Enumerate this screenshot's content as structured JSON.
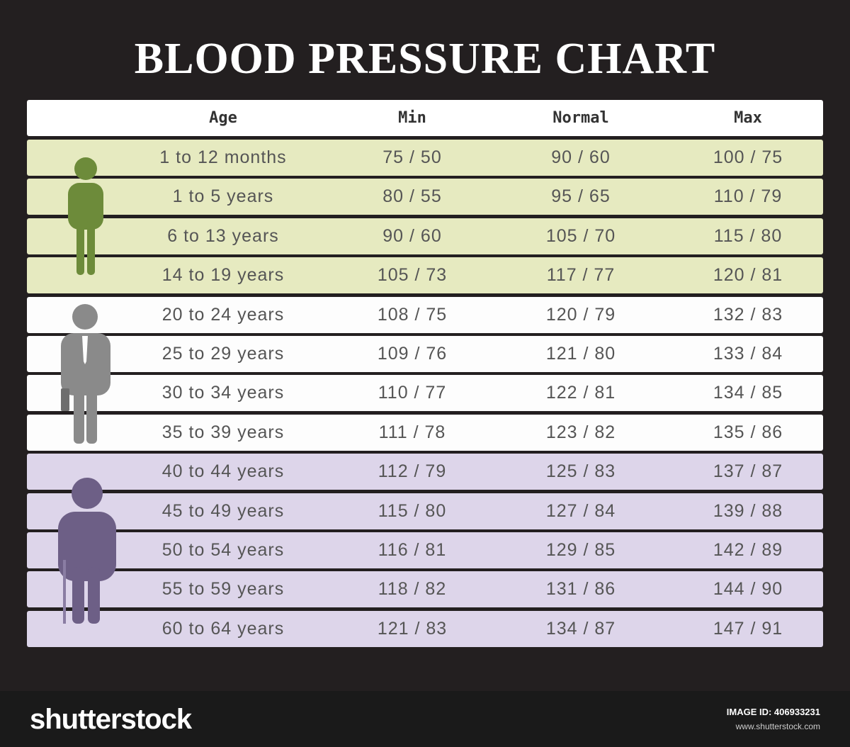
{
  "header": {
    "title": "BLOOD PRESSURE CHART"
  },
  "table": {
    "columns": [
      "Age",
      "Min",
      "Normal",
      "Max"
    ],
    "rows": [
      [
        "1 to 12 months",
        "75 / 50",
        "90 / 60",
        "100 / 75"
      ],
      [
        "1 to 5 years",
        "80 / 55",
        "95 / 65",
        "110 / 79"
      ],
      [
        "6 to 13 years",
        "90 / 60",
        "105 / 70",
        "115 / 80"
      ],
      [
        "14 to 19 years",
        "105 / 73",
        "117 / 77",
        "120 / 81"
      ],
      [
        "20 to 24 years",
        "108 / 75",
        "120 / 79",
        "132 / 83"
      ],
      [
        "25 to 29 years",
        "109 / 76",
        "121 / 80",
        "133 / 84"
      ],
      [
        "30 to 34 years",
        "110 / 77",
        "122 / 81",
        "134 / 85"
      ],
      [
        "35 to 39 years",
        "111 / 78",
        "123 / 82",
        "135 / 86"
      ],
      [
        "40 to 44 years",
        "112 / 79",
        "125 / 83",
        "137 / 87"
      ],
      [
        "45 to 49 years",
        "115 / 80",
        "127 / 84",
        "139 / 88"
      ],
      [
        "50 to 54 years",
        "116 / 81",
        "129 / 85",
        "142 / 89"
      ],
      [
        "55 to 59 years",
        "118 / 82",
        "131 / 86",
        "144 / 90"
      ],
      [
        "60 to 64 years",
        "121 / 83",
        "134 / 87",
        "147 / 91"
      ]
    ]
  },
  "footer": {
    "logo": "shutterstock",
    "image_id": "IMAGE ID: 406933231",
    "url": "www.shutterstock.com"
  }
}
